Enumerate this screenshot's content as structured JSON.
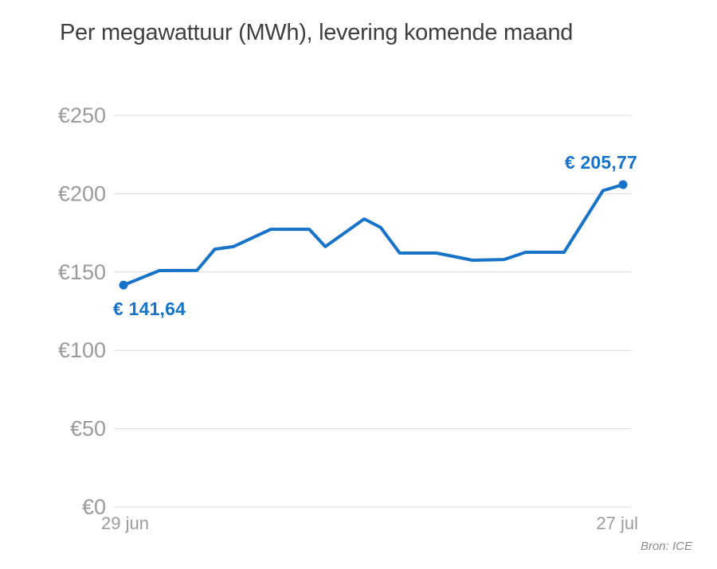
{
  "header": {
    "title": "Per megawattuur (MWh), levering komende maand"
  },
  "source": {
    "label": "Bron: ICE"
  },
  "colors": {
    "line": "#1673c8",
    "point": "#1673c8",
    "value_label": "#1673c8",
    "grid": "#d9d9d9",
    "axis_text": "#9b9b9b",
    "title_text": "#3f3f3f",
    "source_text": "#8a8a8a",
    "background": "#ffffff"
  },
  "chart_data": {
    "type": "line",
    "title": "Per megawattuur (MWh), levering komende maand",
    "currency": "EUR",
    "ylim": [
      0,
      250
    ],
    "grid": true,
    "x_axis": {
      "start_label": "29 jun",
      "end_label": "27 jul"
    },
    "y_axis": {
      "ticks": [
        {
          "value": 0,
          "label": "€0"
        },
        {
          "value": 50,
          "label": "€50"
        },
        {
          "value": 100,
          "label": "€100"
        },
        {
          "value": 150,
          "label": "€150"
        },
        {
          "value": 200,
          "label": "€200"
        },
        {
          "value": 250,
          "label": "€250"
        }
      ]
    },
    "series": [
      {
        "name": "levering komende maand",
        "points": [
          {
            "x": 0.0,
            "value": 141.64
          },
          {
            "x": 0.072,
            "value": 150.9
          },
          {
            "x": 0.147,
            "value": 151.0
          },
          {
            "x": 0.183,
            "value": 164.6
          },
          {
            "x": 0.22,
            "value": 166.2
          },
          {
            "x": 0.295,
            "value": 177.3
          },
          {
            "x": 0.372,
            "value": 177.3
          },
          {
            "x": 0.404,
            "value": 166.2
          },
          {
            "x": 0.482,
            "value": 183.9
          },
          {
            "x": 0.515,
            "value": 178.4
          },
          {
            "x": 0.553,
            "value": 162.1
          },
          {
            "x": 0.627,
            "value": 162.1
          },
          {
            "x": 0.699,
            "value": 157.5
          },
          {
            "x": 0.762,
            "value": 158.0
          },
          {
            "x": 0.805,
            "value": 162.6
          },
          {
            "x": 0.882,
            "value": 162.6
          },
          {
            "x": 0.96,
            "value": 202.0
          },
          {
            "x": 1.0,
            "value": 205.77
          }
        ]
      }
    ],
    "annotations": {
      "start": {
        "text": "€ 141,64",
        "value": 141.64,
        "date": "29 jun"
      },
      "end": {
        "text": "€ 205,77",
        "value": 205.77,
        "date": "27 jul"
      }
    }
  }
}
